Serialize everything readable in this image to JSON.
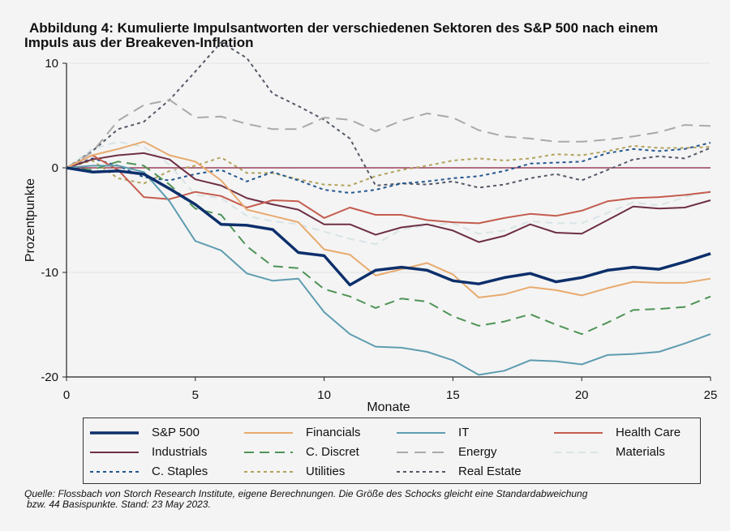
{
  "title_line1": "Abbildung 4: Kumulierte Impulsantworten der verschiedenen Sektoren des S&P 500 nach einem",
  "title_line2": "Impuls aus der Breakeven-Inflation",
  "footer_line1": "Quelle: Flossbach von Storch Research Institute, eigene Berechnungen. Die Größe des Schocks gleicht eine Standardabweichung",
  "footer_line2": "bzw. 44 Basispunkte. Stand: 23 May 2023.",
  "chart_data": {
    "type": "line",
    "title": "Abbildung 4: Kumulierte Impulsantworten der verschiedenen Sektoren des S&P 500 nach einem Impuls aus der Breakeven-Inflation",
    "xlabel": "Monate",
    "ylabel": "Prozentpunkte",
    "xlim": [
      0,
      25
    ],
    "ylim": [
      -20,
      10
    ],
    "xticks": [
      0,
      5,
      10,
      15,
      20,
      25
    ],
    "yticks": [
      -20,
      -10,
      0,
      10
    ],
    "zero_line_color": "#8b1a3a",
    "x": [
      0,
      1,
      2,
      3,
      4,
      5,
      6,
      7,
      8,
      9,
      10,
      11,
      12,
      13,
      14,
      15,
      16,
      17,
      18,
      19,
      20,
      21,
      22,
      23,
      24,
      25
    ],
    "series": [
      {
        "name": "S&P 500",
        "color": "#0d2f6b",
        "dash": "",
        "width": 3.5,
        "values": [
          0,
          -0.4,
          -0.3,
          -0.6,
          -2.0,
          -3.5,
          -5.4,
          -5.5,
          -5.9,
          -8.1,
          -8.4,
          -11.2,
          -9.8,
          -9.5,
          -9.8,
          -10.8,
          -11.1,
          -10.5,
          -10.1,
          -10.9,
          -10.5,
          -9.8,
          -9.5,
          -9.7,
          -9.0,
          -8.2
        ]
      },
      {
        "name": "Financials",
        "color": "#e8aa6e",
        "dash": "",
        "width": 2,
        "values": [
          0,
          1.2,
          1.8,
          2.5,
          1.2,
          0.6,
          -1.2,
          -4.0,
          -4.6,
          -5.2,
          -7.8,
          -8.3,
          -10.3,
          -9.7,
          -9.1,
          -10.2,
          -12.4,
          -12.1,
          -11.4,
          -11.7,
          -12.2,
          -11.5,
          -10.9,
          -11.0,
          -11.0,
          -10.6
        ]
      },
      {
        "name": "IT",
        "color": "#5e9cb0",
        "dash": "",
        "width": 2,
        "values": [
          0,
          0.2,
          0.2,
          -0.4,
          -3.2,
          -7.0,
          -7.9,
          -10.1,
          -10.8,
          -10.6,
          -13.8,
          -15.9,
          -17.1,
          -17.2,
          -17.6,
          -18.4,
          -19.8,
          -19.4,
          -18.4,
          -18.5,
          -18.8,
          -17.9,
          -17.8,
          -17.6,
          -16.8,
          -15.9
        ]
      },
      {
        "name": "Health Care",
        "color": "#c45c4e",
        "dash": "",
        "width": 2,
        "values": [
          0,
          1.2,
          -0.2,
          -2.8,
          -3.0,
          -2.3,
          -2.7,
          -3.8,
          -3.1,
          -3.2,
          -4.8,
          -3.8,
          -4.5,
          -4.5,
          -5.0,
          -5.2,
          -5.3,
          -4.8,
          -4.4,
          -4.6,
          -4.1,
          -3.2,
          -2.9,
          -2.8,
          -2.6,
          -2.3
        ]
      },
      {
        "name": "Industrials",
        "color": "#6e2f45",
        "dash": "",
        "width": 2,
        "values": [
          0,
          0.8,
          1.2,
          1.4,
          0.8,
          -1.1,
          -1.7,
          -2.9,
          -3.5,
          -4.0,
          -5.4,
          -5.4,
          -6.4,
          -5.7,
          -5.4,
          -6.0,
          -7.1,
          -6.5,
          -5.4,
          -6.2,
          -6.3,
          -5.0,
          -3.7,
          -3.9,
          -3.8,
          -3.1
        ]
      },
      {
        "name": "C. Discret",
        "color": "#4e9456",
        "dash": "12 7",
        "width": 2,
        "values": [
          0,
          -0.2,
          0.6,
          0.2,
          -1.6,
          -3.9,
          -4.5,
          -7.5,
          -9.4,
          -9.6,
          -11.6,
          -12.3,
          -13.4,
          -12.5,
          -12.8,
          -14.2,
          -15.1,
          -14.7,
          -14.0,
          -15.0,
          -15.9,
          -14.8,
          -13.6,
          -13.5,
          -13.3,
          -12.3
        ]
      },
      {
        "name": "Energy",
        "color": "#a9a9a9",
        "dash": "14 8",
        "width": 2,
        "values": [
          0,
          1.5,
          4.5,
          6.0,
          6.5,
          4.8,
          4.9,
          4.2,
          3.7,
          3.7,
          4.8,
          4.6,
          3.5,
          4.5,
          5.2,
          4.8,
          3.6,
          3.0,
          2.8,
          2.5,
          2.5,
          2.7,
          3.0,
          3.4,
          4.1,
          4.0
        ]
      },
      {
        "name": "Materials",
        "color": "#d8e4e6",
        "dash": "9 6",
        "width": 2,
        "values": [
          0,
          1.8,
          2.5,
          2.0,
          0.3,
          -2.6,
          -2.9,
          -4.6,
          -5.1,
          -5.4,
          -6.1,
          -6.8,
          -7.3,
          -5.9,
          -5.5,
          -5.3,
          -6.3,
          -6.0,
          -5.1,
          -5.3,
          -5.3,
          -4.3,
          -3.3,
          -3.6,
          -2.8,
          -2.2
        ]
      },
      {
        "name": "C. Staples",
        "color": "#23568f",
        "dash": "4 4",
        "width": 2,
        "values": [
          0,
          0.9,
          0.2,
          -0.9,
          -1.2,
          -0.6,
          -0.2,
          -1.3,
          -0.4,
          -1.2,
          -2.1,
          -2.4,
          -2.1,
          -1.5,
          -1.3,
          -1.0,
          -0.8,
          -0.3,
          0.4,
          0.5,
          0.6,
          1.4,
          1.8,
          1.6,
          1.8,
          2.4
        ]
      },
      {
        "name": "Utilities",
        "color": "#b2a35c",
        "dash": "4 4",
        "width": 2,
        "values": [
          0,
          0.7,
          -1.0,
          -1.5,
          -0.3,
          0.2,
          1.0,
          -0.5,
          -0.5,
          -1.1,
          -1.6,
          -1.7,
          -0.8,
          -0.2,
          0.2,
          0.7,
          0.9,
          0.7,
          0.9,
          1.3,
          1.2,
          1.6,
          2.1,
          1.9,
          1.9,
          2.0
        ]
      },
      {
        "name": "Real Estate",
        "color": "#545968",
        "dash": "4 4",
        "width": 2,
        "values": [
          0,
          1.6,
          3.7,
          4.4,
          6.5,
          9.2,
          12.0,
          10.5,
          7.1,
          5.9,
          4.6,
          2.8,
          -1.7,
          -1.5,
          -1.6,
          -1.3,
          -1.9,
          -1.6,
          -1.0,
          -0.6,
          -1.2,
          -0.2,
          0.8,
          1.1,
          0.9,
          1.9
        ]
      }
    ]
  }
}
